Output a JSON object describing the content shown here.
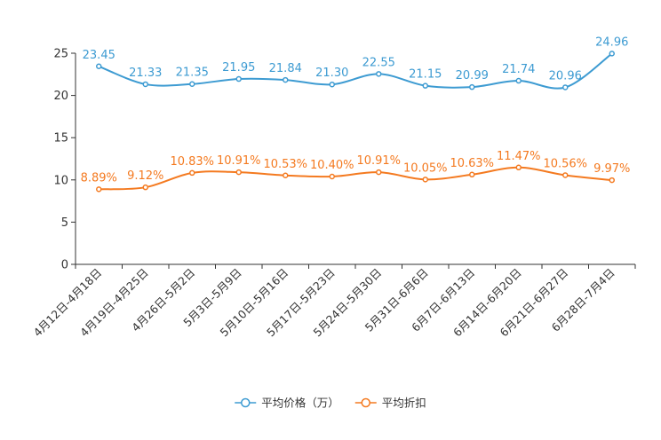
{
  "chart_data": {
    "type": "line",
    "smooth": true,
    "title": "",
    "xlabel": "",
    "ylabel": "",
    "ylim": [
      0,
      25
    ],
    "yticks": [
      0,
      5,
      10,
      15,
      20,
      25
    ],
    "grid": false,
    "legend_position": "bottom-center",
    "categories": [
      "4月12日-4月18日",
      "4月19日-4月25日",
      "4月26日-5月2日",
      "5月3日-5月9日",
      "5月10日-5月16日",
      "5月17日-5月23日",
      "5月24日-5月30日",
      "5月31日-6月6日",
      "6月7日-6月13日",
      "6月14日-6月20日",
      "6月21日-6月27日",
      "6月28日-7月4日"
    ],
    "series": [
      {
        "name": "平均价格（万）",
        "color": "#3d9bd2",
        "values": [
          23.45,
          21.33,
          21.35,
          21.95,
          21.84,
          21.3,
          22.55,
          21.15,
          20.99,
          21.74,
          20.96,
          24.96
        ],
        "labels": [
          "23.45",
          "21.33",
          "21.35",
          "21.95",
          "21.84",
          "21.30",
          "22.55",
          "21.15",
          "20.99",
          "21.74",
          "20.96",
          "24.96"
        ]
      },
      {
        "name": "平均折扣",
        "color": "#f47a20",
        "values": [
          8.89,
          9.12,
          10.83,
          10.91,
          10.53,
          10.4,
          10.91,
          10.05,
          10.63,
          11.47,
          10.56,
          9.97
        ],
        "labels": [
          "8.89%",
          "9.12%",
          "10.83%",
          "10.91%",
          "10.53%",
          "10.40%",
          "10.91%",
          "10.05%",
          "10.63%",
          "11.47%",
          "10.56%",
          "9.97%"
        ]
      }
    ]
  }
}
